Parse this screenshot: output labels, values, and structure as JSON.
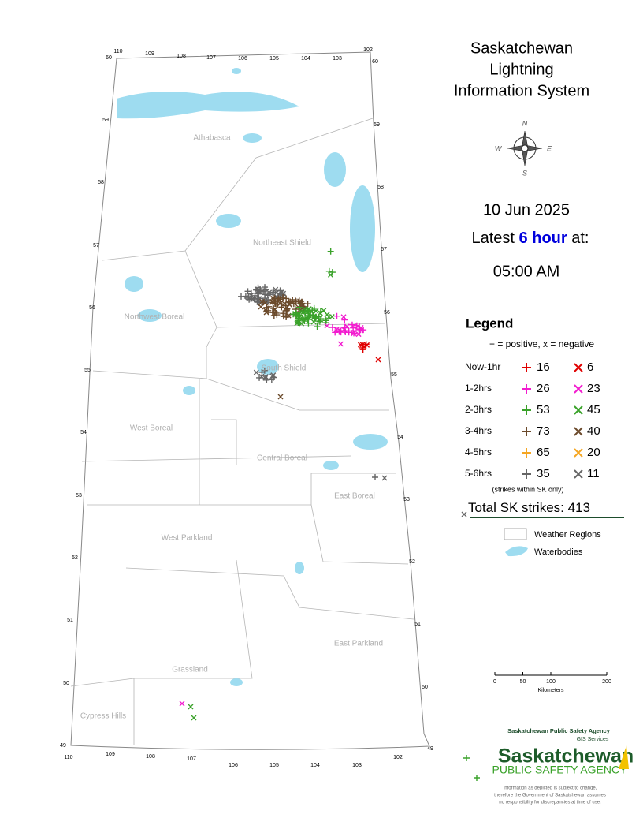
{
  "header": {
    "title_lines": [
      "Saskatchewan",
      "Lightning",
      "Information System"
    ],
    "date": "10 Jun 2025",
    "latest_prefix": "Latest",
    "latest_highlight": "6 hour",
    "latest_suffix": "at:",
    "time": "05:00 AM"
  },
  "compass": {
    "n": "N",
    "e": "E",
    "s": "S",
    "w": "W"
  },
  "legend": {
    "title": "Legend",
    "subtitle": "+ = positive, x = negative",
    "rows": [
      {
        "label": "Now-1hr",
        "positive": 16,
        "negative": 6,
        "color": "#e00000"
      },
      {
        "label": "1-2hrs",
        "positive": 26,
        "negative": 23,
        "color": "#f21ccf"
      },
      {
        "label": "2-3hrs",
        "positive": 53,
        "negative": 45,
        "color": "#3aa22a"
      },
      {
        "label": "3-4hrs",
        "positive": 73,
        "negative": 40,
        "color": "#6b4a2b"
      },
      {
        "label": "4-5hrs",
        "positive": 65,
        "negative": 20,
        "color": "#f5a623"
      },
      {
        "label": "5-6hrs",
        "positive": 35,
        "negative": 11,
        "color": "#666666"
      }
    ],
    "note": "(strikes within SK only)",
    "total_label": "Total SK strikes:",
    "total": 413,
    "items": [
      "Weather Regions",
      "Waterbodies"
    ]
  },
  "map": {
    "regions": [
      "Athabasca",
      "Northeast Shield",
      "Northwest Boreal",
      "South Shield",
      "West Boreal",
      "Central Boreal",
      "East Boreal",
      "West Parkland",
      "East Parkland",
      "Grassland",
      "Cypress Hills"
    ],
    "lat_left": [
      60,
      59,
      58,
      57,
      56,
      55,
      54,
      53,
      52,
      51,
      50,
      49
    ],
    "lat_right": [
      60,
      59,
      58,
      57,
      56,
      55,
      54,
      53,
      52,
      51,
      50,
      49
    ],
    "lon_top": [
      110,
      109,
      108,
      107,
      106,
      105,
      104,
      103,
      102
    ],
    "lon_bottom": [
      110,
      109,
      108,
      107,
      106,
      105,
      104,
      103,
      102
    ]
  },
  "scale": {
    "ticks": [
      0,
      50,
      100,
      200
    ],
    "unit": "Kilometers"
  },
  "footer": {
    "agency": "Saskatchewan Public Safety Agency",
    "services": "GIS  Services",
    "logo_main": "Saskatchewan",
    "logo_sub": "PUBLIC SAFETY AGENCY",
    "disclaimer": [
      "Information as depicted is subject to change,",
      "therefore the Government of Saskatchewan assumes",
      "no responsibility for discrepancies at time of use."
    ]
  }
}
